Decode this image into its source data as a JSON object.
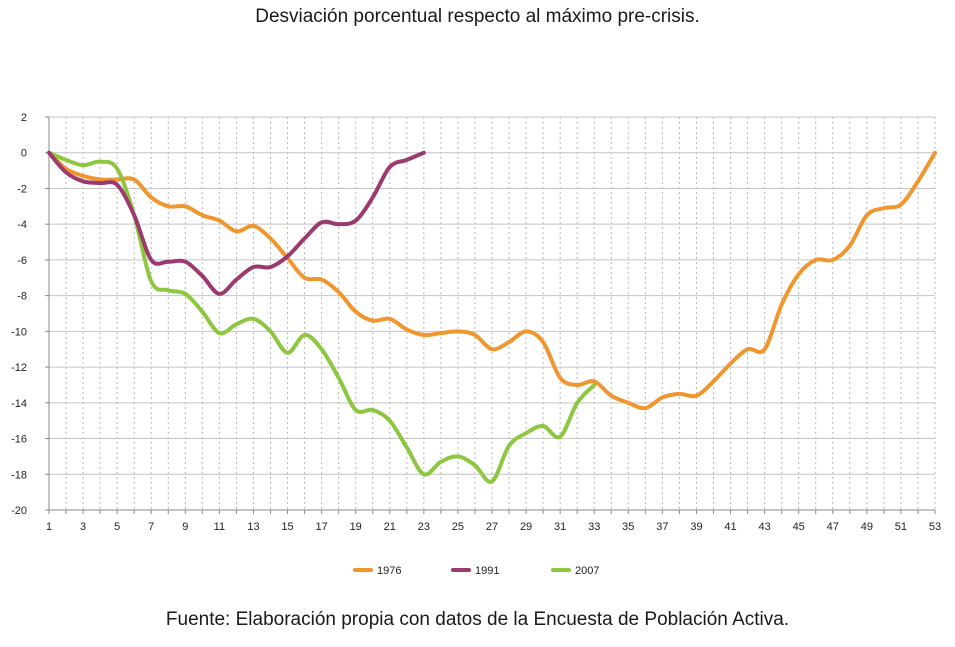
{
  "chart_data": {
    "type": "line",
    "title": "Desviación porcentual respecto al máximo pre-crisis.",
    "source": "Fuente: Elaboración propia con datos de la Encuesta de Población Activa.",
    "xlabel": "",
    "ylabel": "",
    "xlim": [
      1,
      53
    ],
    "ylim": [
      -20,
      2
    ],
    "x_ticks": [
      1,
      3,
      5,
      7,
      9,
      11,
      13,
      15,
      17,
      19,
      21,
      23,
      25,
      27,
      29,
      31,
      33,
      35,
      37,
      39,
      41,
      43,
      45,
      47,
      49,
      51,
      53
    ],
    "y_ticks": [
      2,
      0,
      -2,
      -4,
      -6,
      -8,
      -10,
      -12,
      -14,
      -16,
      -18,
      -20
    ],
    "grid": true,
    "legend_position": "bottom",
    "series": [
      {
        "name": "1976",
        "color": "#f0962e",
        "x": [
          1,
          2,
          3,
          4,
          5,
          6,
          7,
          8,
          9,
          10,
          11,
          12,
          13,
          14,
          15,
          16,
          17,
          18,
          19,
          20,
          21,
          22,
          23,
          24,
          25,
          26,
          27,
          28,
          29,
          30,
          31,
          32,
          33,
          34,
          35,
          36,
          37,
          38,
          39,
          40,
          41,
          42,
          43,
          44,
          45,
          46,
          47,
          48,
          49,
          50,
          51,
          52,
          53
        ],
        "values": [
          0,
          -0.9,
          -1.3,
          -1.5,
          -1.5,
          -1.5,
          -2.5,
          -3.0,
          -3.0,
          -3.5,
          -3.8,
          -4.4,
          -4.1,
          -4.8,
          -5.9,
          -7.0,
          -7.1,
          -7.8,
          -8.9,
          -9.4,
          -9.3,
          -9.9,
          -10.2,
          -10.1,
          -10.0,
          -10.2,
          -11.0,
          -10.6,
          -10.0,
          -10.6,
          -12.6,
          -13.0,
          -12.8,
          -13.6,
          -14.0,
          -14.3,
          -13.7,
          -13.5,
          -13.6,
          -12.8,
          -11.8,
          -11.0,
          -11.0,
          -8.5,
          -6.8,
          -6.0,
          -6.0,
          -5.2,
          -3.5,
          -3.1,
          -2.9,
          -1.6,
          0
        ]
      },
      {
        "name": "1991",
        "color": "#9b3a6e",
        "x": [
          1,
          2,
          3,
          4,
          5,
          6,
          7,
          8,
          9,
          10,
          11,
          12,
          13,
          14,
          15,
          16,
          17,
          18,
          19,
          20,
          21,
          22,
          23
        ],
        "values": [
          0,
          -1.1,
          -1.6,
          -1.7,
          -1.8,
          -3.5,
          -6.0,
          -6.1,
          -6.1,
          -6.9,
          -7.9,
          -7.1,
          -6.4,
          -6.4,
          -5.8,
          -4.8,
          -3.9,
          -4.0,
          -3.8,
          -2.5,
          -0.8,
          -0.4,
          0
        ]
      },
      {
        "name": "2007",
        "color": "#8dc63f",
        "x": [
          1,
          2,
          3,
          4,
          5,
          6,
          7,
          8,
          9,
          10,
          11,
          12,
          13,
          14,
          15,
          16,
          17,
          18,
          19,
          20,
          21,
          22,
          23,
          24,
          25,
          26,
          27,
          28,
          29,
          30,
          31,
          32,
          33
        ],
        "values": [
          0,
          -0.4,
          -0.7,
          -0.5,
          -0.9,
          -3.5,
          -7.2,
          -7.7,
          -7.9,
          -8.9,
          -10.1,
          -9.6,
          -9.3,
          -10.0,
          -11.2,
          -10.2,
          -11.0,
          -12.6,
          -14.4,
          -14.4,
          -15.0,
          -16.5,
          -18.0,
          -17.3,
          -17.0,
          -17.5,
          -18.4,
          -16.4,
          -15.7,
          -15.3,
          -15.9,
          -14.0,
          -13.0
        ]
      }
    ]
  }
}
